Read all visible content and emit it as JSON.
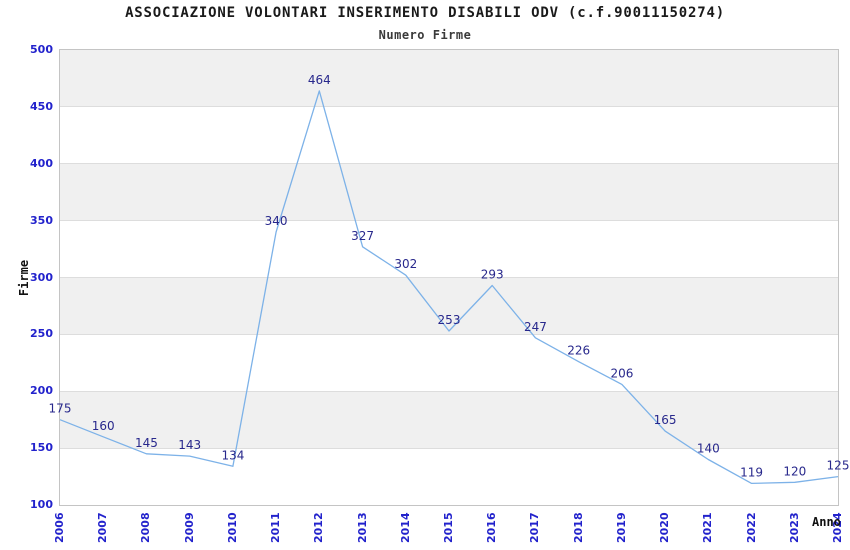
{
  "header": {
    "title": "ASSOCIAZIONE VOLONTARI INSERIMENTO DISABILI ODV (c.f.90011150274)",
    "subtitle": "Numero Firme"
  },
  "chart_data": {
    "type": "line",
    "title": "ASSOCIAZIONE VOLONTARI INSERIMENTO DISABILI ODV (c.f.90011150274)",
    "subtitle": "Numero Firme",
    "xlabel": "Anno",
    "ylabel": "Firme",
    "x": [
      "2006",
      "2007",
      "2008",
      "2009",
      "2010",
      "2011",
      "2012",
      "2013",
      "2014",
      "2015",
      "2016",
      "2017",
      "2018",
      "2019",
      "2020",
      "2021",
      "2022",
      "2023",
      "2024"
    ],
    "values": [
      175,
      160,
      145,
      143,
      134,
      340,
      464,
      327,
      302,
      253,
      293,
      247,
      226,
      206,
      165,
      140,
      119,
      120,
      125
    ],
    "ylim": [
      100,
      500
    ],
    "ytick_step": 50,
    "yticks": [
      500,
      450,
      400,
      350,
      300,
      250,
      200,
      150,
      100
    ],
    "grid": true,
    "legend": false,
    "point_labels": true,
    "band_fill_alternating": true,
    "colors": {
      "line": "#7db2e8",
      "point_label": "#28288c",
      "tick_label": "#2222cc",
      "band": "#f0f0f0",
      "band_alt": "#ffffff",
      "gridline": "#dddddd",
      "plot_border": "#c4c4c4",
      "title": "#1a1a1a"
    }
  }
}
